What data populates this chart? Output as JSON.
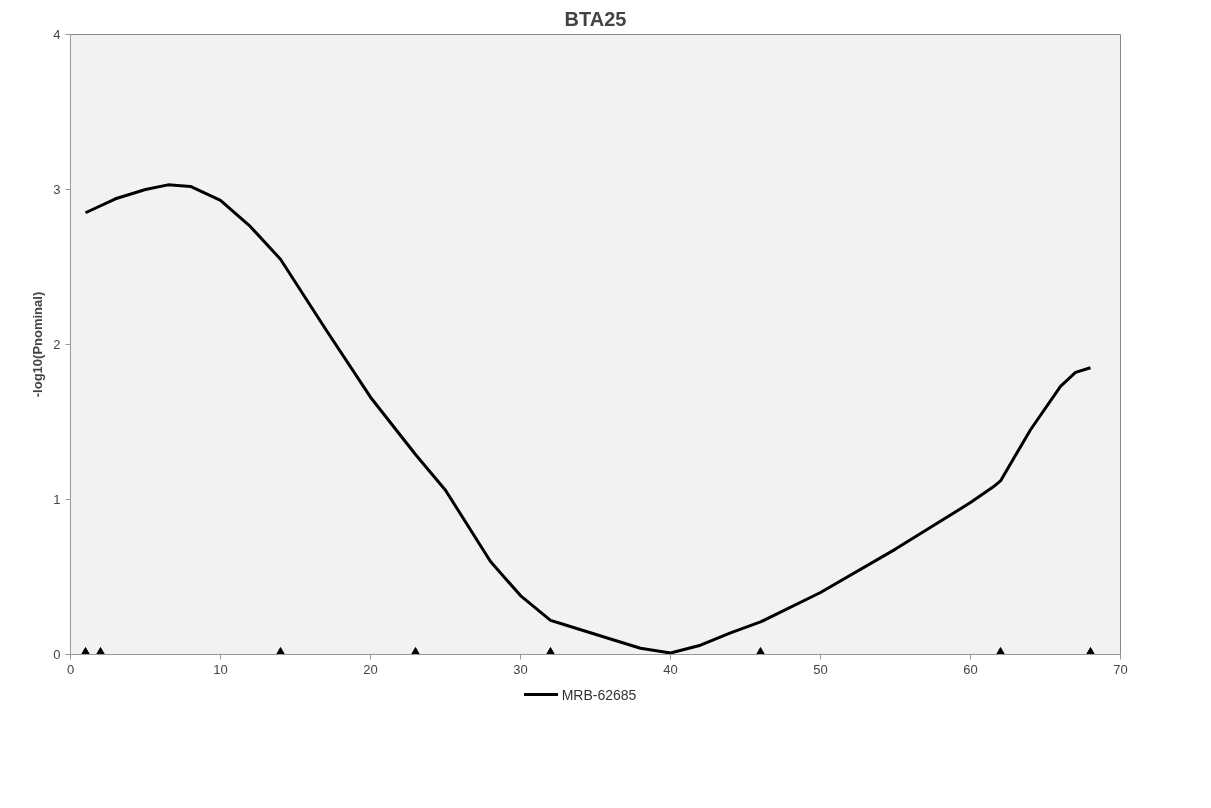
{
  "chart_data": {
    "type": "line",
    "title": "BTA25",
    "ylabel": "-log10(Pnominal)",
    "xlim": [
      0,
      70
    ],
    "xticks": [
      0,
      10,
      20,
      30,
      40,
      50,
      60,
      70
    ],
    "ylim": [
      0,
      4
    ],
    "yticks": [
      0,
      1,
      2,
      3,
      4
    ],
    "grid": false,
    "legend": "bottom",
    "series": [
      {
        "name": "MRB-62685",
        "color": "#000000",
        "marker": "none",
        "x": [
          1,
          3,
          5,
          6.5,
          8,
          10,
          12,
          14,
          17,
          20,
          23,
          25,
          28,
          30,
          32,
          33,
          36,
          38,
          40,
          42,
          44,
          46,
          50,
          55,
          60,
          61.5,
          62,
          64,
          66,
          67,
          68
        ],
        "values": [
          2.85,
          2.94,
          3.0,
          3.03,
          3.02,
          2.93,
          2.76,
          2.55,
          2.1,
          1.66,
          1.29,
          1.06,
          0.6,
          0.38,
          0.22,
          0.19,
          0.1,
          0.04,
          0.01,
          0.06,
          0.14,
          0.21,
          0.4,
          0.68,
          0.98,
          1.08,
          1.12,
          1.45,
          1.73,
          1.82,
          1.85
        ]
      },
      {
        "color": "#000000",
        "type": "scatter",
        "marker": "triangle",
        "x": [
          1,
          2,
          14,
          23,
          32,
          46,
          62,
          68
        ],
        "values": [
          0,
          0,
          0,
          0,
          0,
          0,
          0,
          0
        ]
      }
    ]
  }
}
